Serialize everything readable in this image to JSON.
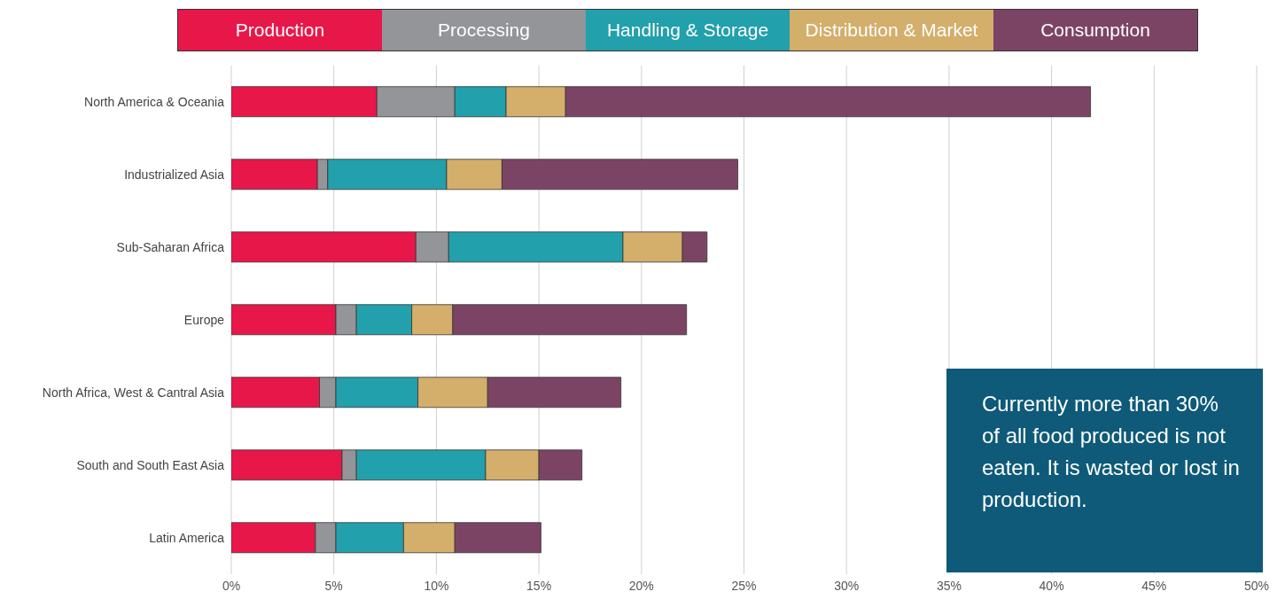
{
  "chart_data": {
    "type": "bar",
    "orientation": "horizontal",
    "stacked": true,
    "categories": [
      "North America & Oceania",
      "Industrialized Asia",
      "Sub-Saharan Africa",
      "Europe",
      "North Africa, West & Cantral Asia",
      "South and South East Asia",
      "Latin America"
    ],
    "series": [
      {
        "name": "Production",
        "color": "#e8174a",
        "values": [
          7.1,
          4.2,
          9.0,
          5.1,
          4.3,
          5.4,
          4.1
        ]
      },
      {
        "name": "Processing",
        "color": "#939598",
        "values": [
          3.8,
          0.5,
          1.6,
          1.0,
          0.8,
          0.7,
          1.0
        ]
      },
      {
        "name": "Handling & Storage",
        "color": "#22a0ac",
        "values": [
          2.5,
          5.8,
          8.5,
          2.7,
          4.0,
          6.3,
          3.3
        ]
      },
      {
        "name": "Distribution & Market",
        "color": "#d4ae6b",
        "values": [
          2.9,
          2.7,
          2.9,
          2.0,
          3.4,
          2.6,
          2.5
        ]
      },
      {
        "name": "Consumption",
        "color": "#7c4464",
        "values": [
          25.6,
          11.5,
          1.2,
          11.4,
          6.5,
          2.1,
          4.2
        ]
      }
    ],
    "xlim": [
      0,
      50
    ],
    "xticks": [
      {
        "value": 0,
        "label": "0%"
      },
      {
        "value": 5,
        "label": "5%"
      },
      {
        "value": 10,
        "label": "10%"
      },
      {
        "value": 15,
        "label": "15%"
      },
      {
        "value": 20,
        "label": "20%"
      },
      {
        "value": 25,
        "label": "25%"
      },
      {
        "value": 30,
        "label": "30%"
      },
      {
        "value": 35,
        "label": "35%"
      },
      {
        "value": 40,
        "label": "40%"
      },
      {
        "value": 45,
        "label": "45%"
      },
      {
        "value": 50,
        "label": "50%"
      }
    ],
    "grid": "x",
    "legend": "top",
    "annotations": [
      "Currently more than 30% of all food produced is not eaten. It is wasted or lost in production."
    ]
  }
}
